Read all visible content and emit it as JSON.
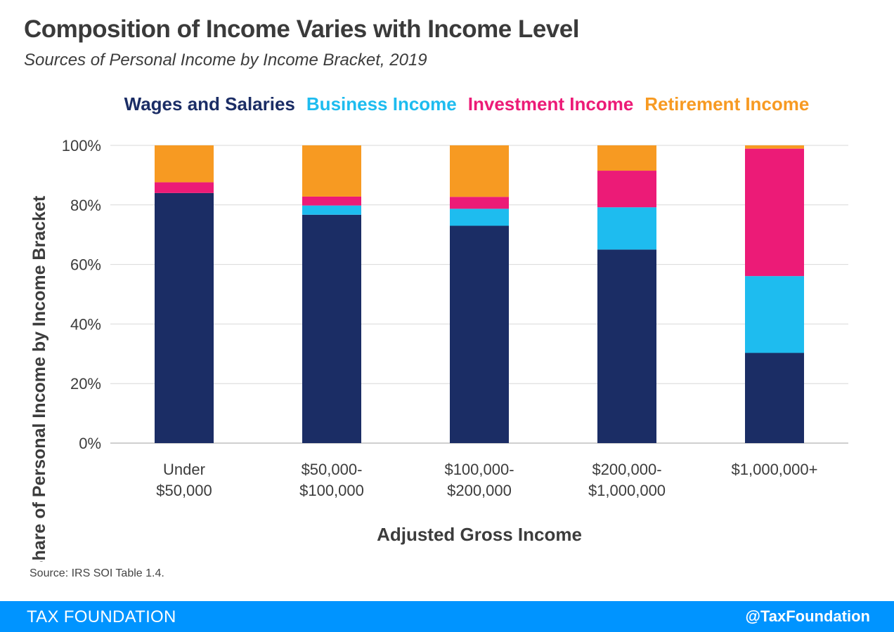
{
  "header": {
    "title": "Composition of Income Varies with Income Level",
    "subtitle": "Sources of Personal Income by Income Bracket, 2019"
  },
  "footer": {
    "source": "Source: IRS SOI Table 1.4.",
    "brand": "TAX FOUNDATION",
    "handle": "@TaxFoundation"
  },
  "colors": {
    "footer_bar": "#0094ff",
    "grid": "#d9d9d9",
    "axis": "#bfbfbf"
  },
  "chart_data": {
    "type": "bar",
    "stacked": true,
    "title": "Composition of Income Varies with Income Level",
    "subtitle": "Sources of Personal Income by Income Bracket, 2019",
    "xlabel": "Adjusted Gross Income",
    "ylabel": "Share of Personal Income by Income Bracket",
    "ylim": [
      0,
      100
    ],
    "yticks": [
      "0%",
      "20%",
      "40%",
      "60%",
      "80%",
      "100%"
    ],
    "grid": true,
    "legend_position": "top",
    "categories": [
      [
        "Under",
        "$50,000"
      ],
      [
        "$50,000-",
        "$100,000"
      ],
      [
        "$100,000-",
        "$200,000"
      ],
      [
        "$200,000-",
        "$1,000,000"
      ],
      [
        "$1,000,000+"
      ]
    ],
    "series": [
      {
        "name": "Wages and Salaries",
        "color": "#1b2d65",
        "values": [
          84,
          76.7,
          73,
          65,
          30.3
        ]
      },
      {
        "name": "Business Income",
        "color": "#1ebcef",
        "values": [
          0,
          3.1,
          5.7,
          14.2,
          25.8
        ]
      },
      {
        "name": "Investment Income",
        "color": "#ec1b77",
        "values": [
          3.6,
          3,
          4,
          12.3,
          42.8
        ]
      },
      {
        "name": "Retirement Income",
        "color": "#f79a22",
        "values": [
          12.4,
          17.2,
          17.3,
          8.5,
          1.1
        ]
      }
    ]
  }
}
